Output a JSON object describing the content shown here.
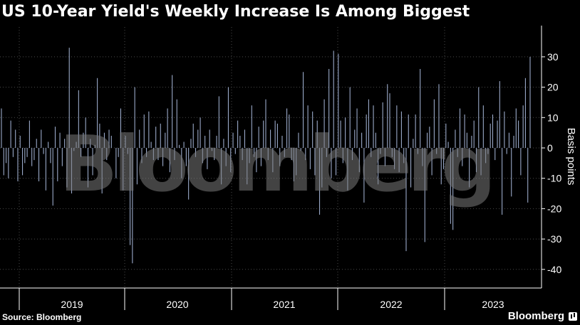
{
  "header": {
    "title": "US 10-Year Yield's Weekly Increase Is Among Biggest"
  },
  "footer": {
    "source": "Source: Bloomberg",
    "brand": "Bloomberg"
  },
  "watermark": "Bloomberg",
  "colors": {
    "background": "#000000",
    "bar": "#9aa9c9",
    "grid": "#4a4a4a",
    "text": "#ffffff"
  },
  "chart_data": {
    "type": "bar",
    "title": "US 10-Year Yield's Weekly Increase Is Among Biggest",
    "ylabel": "Basis points",
    "xlabel": "",
    "ylim": [
      -45,
      40
    ],
    "yticks": [
      30,
      20,
      10,
      0,
      -10,
      -20,
      -30,
      -40
    ],
    "xticks": [
      "2019",
      "2020",
      "2021",
      "2022",
      "2023"
    ],
    "grid": true,
    "x_start": "2018-07",
    "x_end": "2023-10",
    "series": [
      {
        "values": [
          13,
          -9,
          -5,
          -10,
          9,
          -3,
          6,
          -11,
          4,
          -9,
          -5,
          -3,
          9,
          -6,
          -4,
          3,
          -11,
          6,
          -2,
          -14,
          2,
          -5,
          -19,
          7,
          -11,
          5,
          -6,
          3,
          -13,
          33,
          -15,
          -1,
          2,
          19,
          -3,
          5,
          10,
          -13,
          3,
          -9,
          1,
          23,
          8,
          -15,
          5,
          -4,
          6,
          4,
          0,
          -10,
          -3,
          13,
          -14,
          4,
          -2,
          -32,
          -38,
          20,
          -12,
          6,
          -5,
          11,
          -3,
          12,
          2,
          -4,
          7,
          -4,
          8,
          -6,
          5,
          13,
          -8,
          24,
          -4,
          16,
          1,
          -10,
          2,
          -6,
          -17,
          3,
          8,
          -3,
          6,
          10,
          -5,
          4,
          -7,
          6,
          -1,
          -4,
          4,
          17,
          -12,
          3,
          -6,
          20,
          -8,
          5,
          -2,
          9,
          4,
          -4,
          6,
          -12,
          -5,
          14,
          -3,
          -8,
          7,
          -6,
          9,
          16,
          -4,
          6,
          -8,
          9,
          8,
          -6,
          4,
          -3,
          13,
          11,
          -4,
          -11,
          -9,
          5,
          -1,
          25,
          -4,
          14,
          -7,
          12,
          -9,
          9,
          -22,
          -13,
          16,
          -3,
          26,
          -10,
          32,
          -9,
          31,
          9,
          -5,
          10,
          -14,
          20,
          -4,
          6,
          13,
          -8,
          5,
          -18,
          11,
          16,
          -3,
          14,
          5,
          -12,
          -2,
          15,
          -6,
          21,
          18,
          -3,
          -7,
          14,
          -8,
          12,
          -5,
          -34,
          11,
          -13,
          3,
          11,
          -2,
          26,
          -6,
          -31,
          5,
          7,
          -9,
          16,
          -2,
          21,
          -12,
          -7,
          8,
          2,
          -25,
          -27,
          6,
          -3,
          13,
          -6,
          11,
          5,
          -13,
          4,
          9,
          -8,
          20,
          -9,
          14,
          -5,
          -2,
          8,
          11,
          -4,
          9,
          22,
          -22,
          12,
          -2,
          5,
          -16,
          4,
          13,
          9,
          -9,
          14,
          23,
          -18,
          30
        ]
      }
    ]
  }
}
